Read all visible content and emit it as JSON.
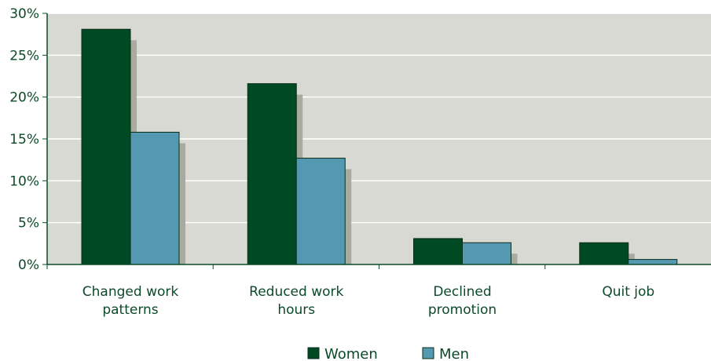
{
  "chart_data": {
    "type": "bar",
    "categories": [
      [
        "Changed work",
        "patterns"
      ],
      [
        "Reduced work",
        "hours"
      ],
      [
        "Declined",
        "promotion"
      ],
      [
        "Quit job"
      ]
    ],
    "series": [
      {
        "name": "Women",
        "values": [
          28.1,
          21.6,
          3.1,
          2.6
        ],
        "color": "#004a23"
      },
      {
        "name": "Men",
        "values": [
          15.8,
          12.7,
          2.6,
          0.6
        ],
        "color": "#5499b1"
      }
    ],
    "ylim": [
      0,
      30
    ],
    "yticks": [
      0,
      5,
      10,
      15,
      20,
      25,
      30
    ],
    "ytick_labels": [
      "0%",
      "5%",
      "10%",
      "15%",
      "20%",
      "25%",
      "30%"
    ],
    "grid": true,
    "legend_position": "bottom-center",
    "plot_background": "#d8d9d3",
    "shadow_color": "#a9ab9f",
    "text_color": "#0b4a2a"
  }
}
